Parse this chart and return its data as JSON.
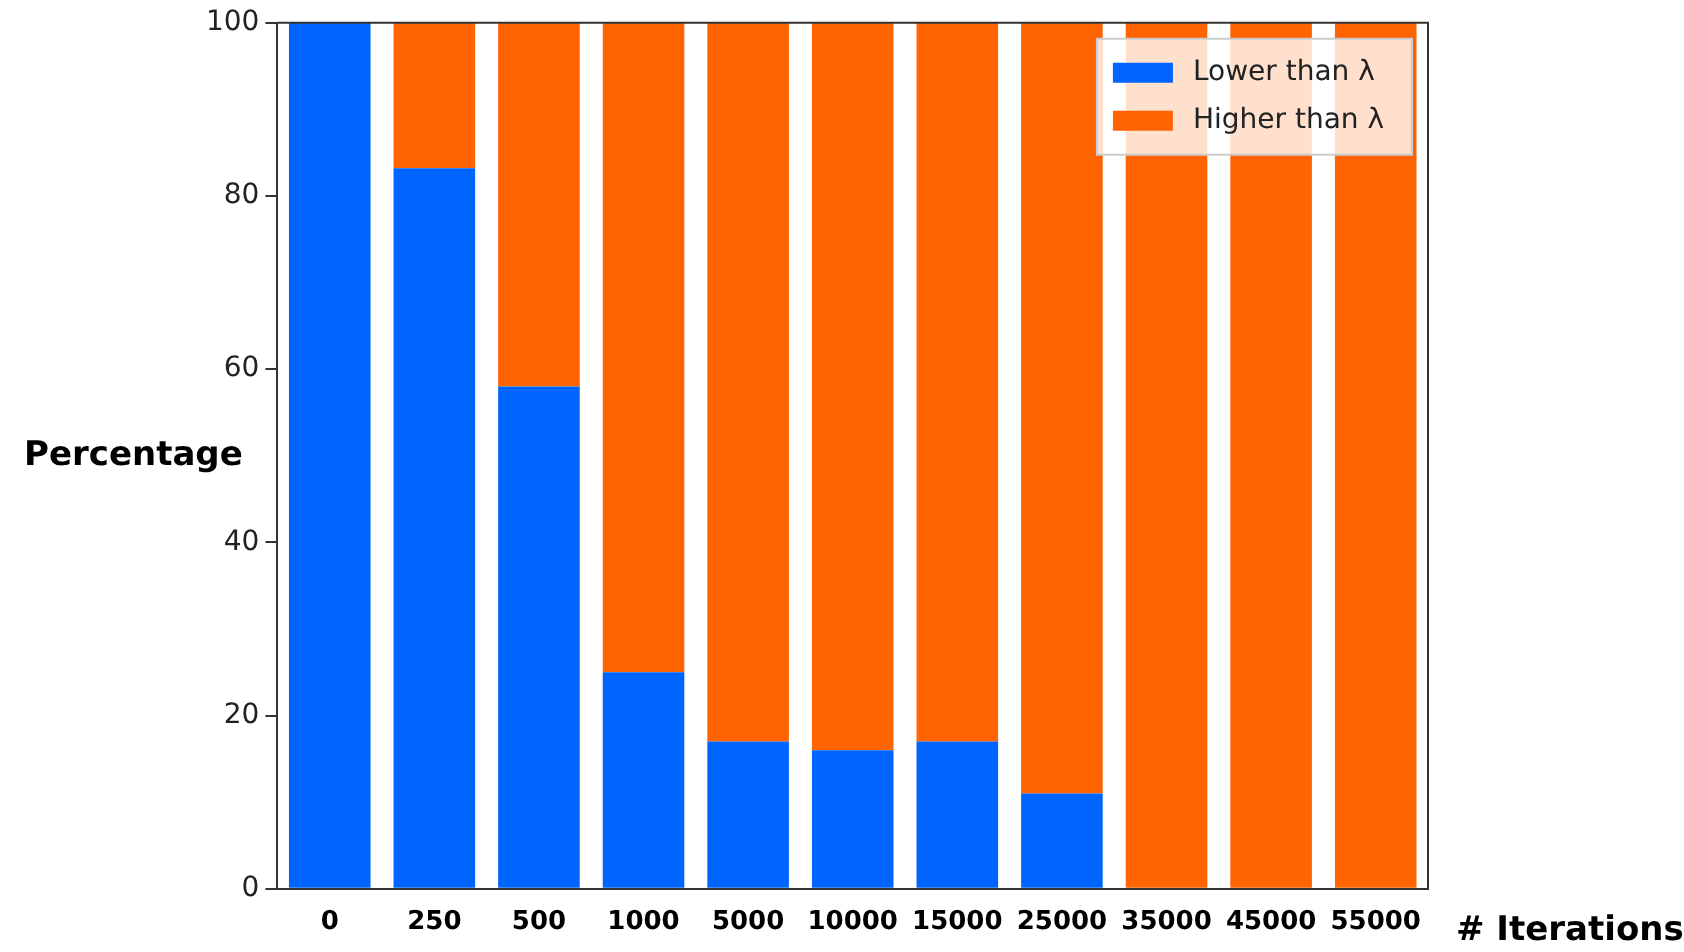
{
  "chart_data": {
    "type": "bar",
    "stacked": true,
    "xlabel": "# Iterations",
    "ylabel": "Percentage",
    "categories": [
      "0",
      "250",
      "500",
      "1000",
      "5000",
      "10000",
      "15000",
      "25000",
      "35000",
      "45000",
      "55000"
    ],
    "series": [
      {
        "name": "Lower than λ",
        "color": "#0064ff",
        "values": [
          100,
          83.2,
          58,
          25,
          17,
          16,
          17,
          11,
          0,
          0,
          0
        ]
      },
      {
        "name": "Higher than λ",
        "color": "#ff6400",
        "values": [
          0,
          16.8,
          42,
          75,
          83,
          84,
          83,
          89,
          100,
          100,
          100
        ]
      }
    ],
    "ylim": [
      0,
      100
    ],
    "yticks": [
      0,
      20,
      40,
      60,
      80,
      100
    ],
    "grid": false,
    "legend": "top right"
  }
}
